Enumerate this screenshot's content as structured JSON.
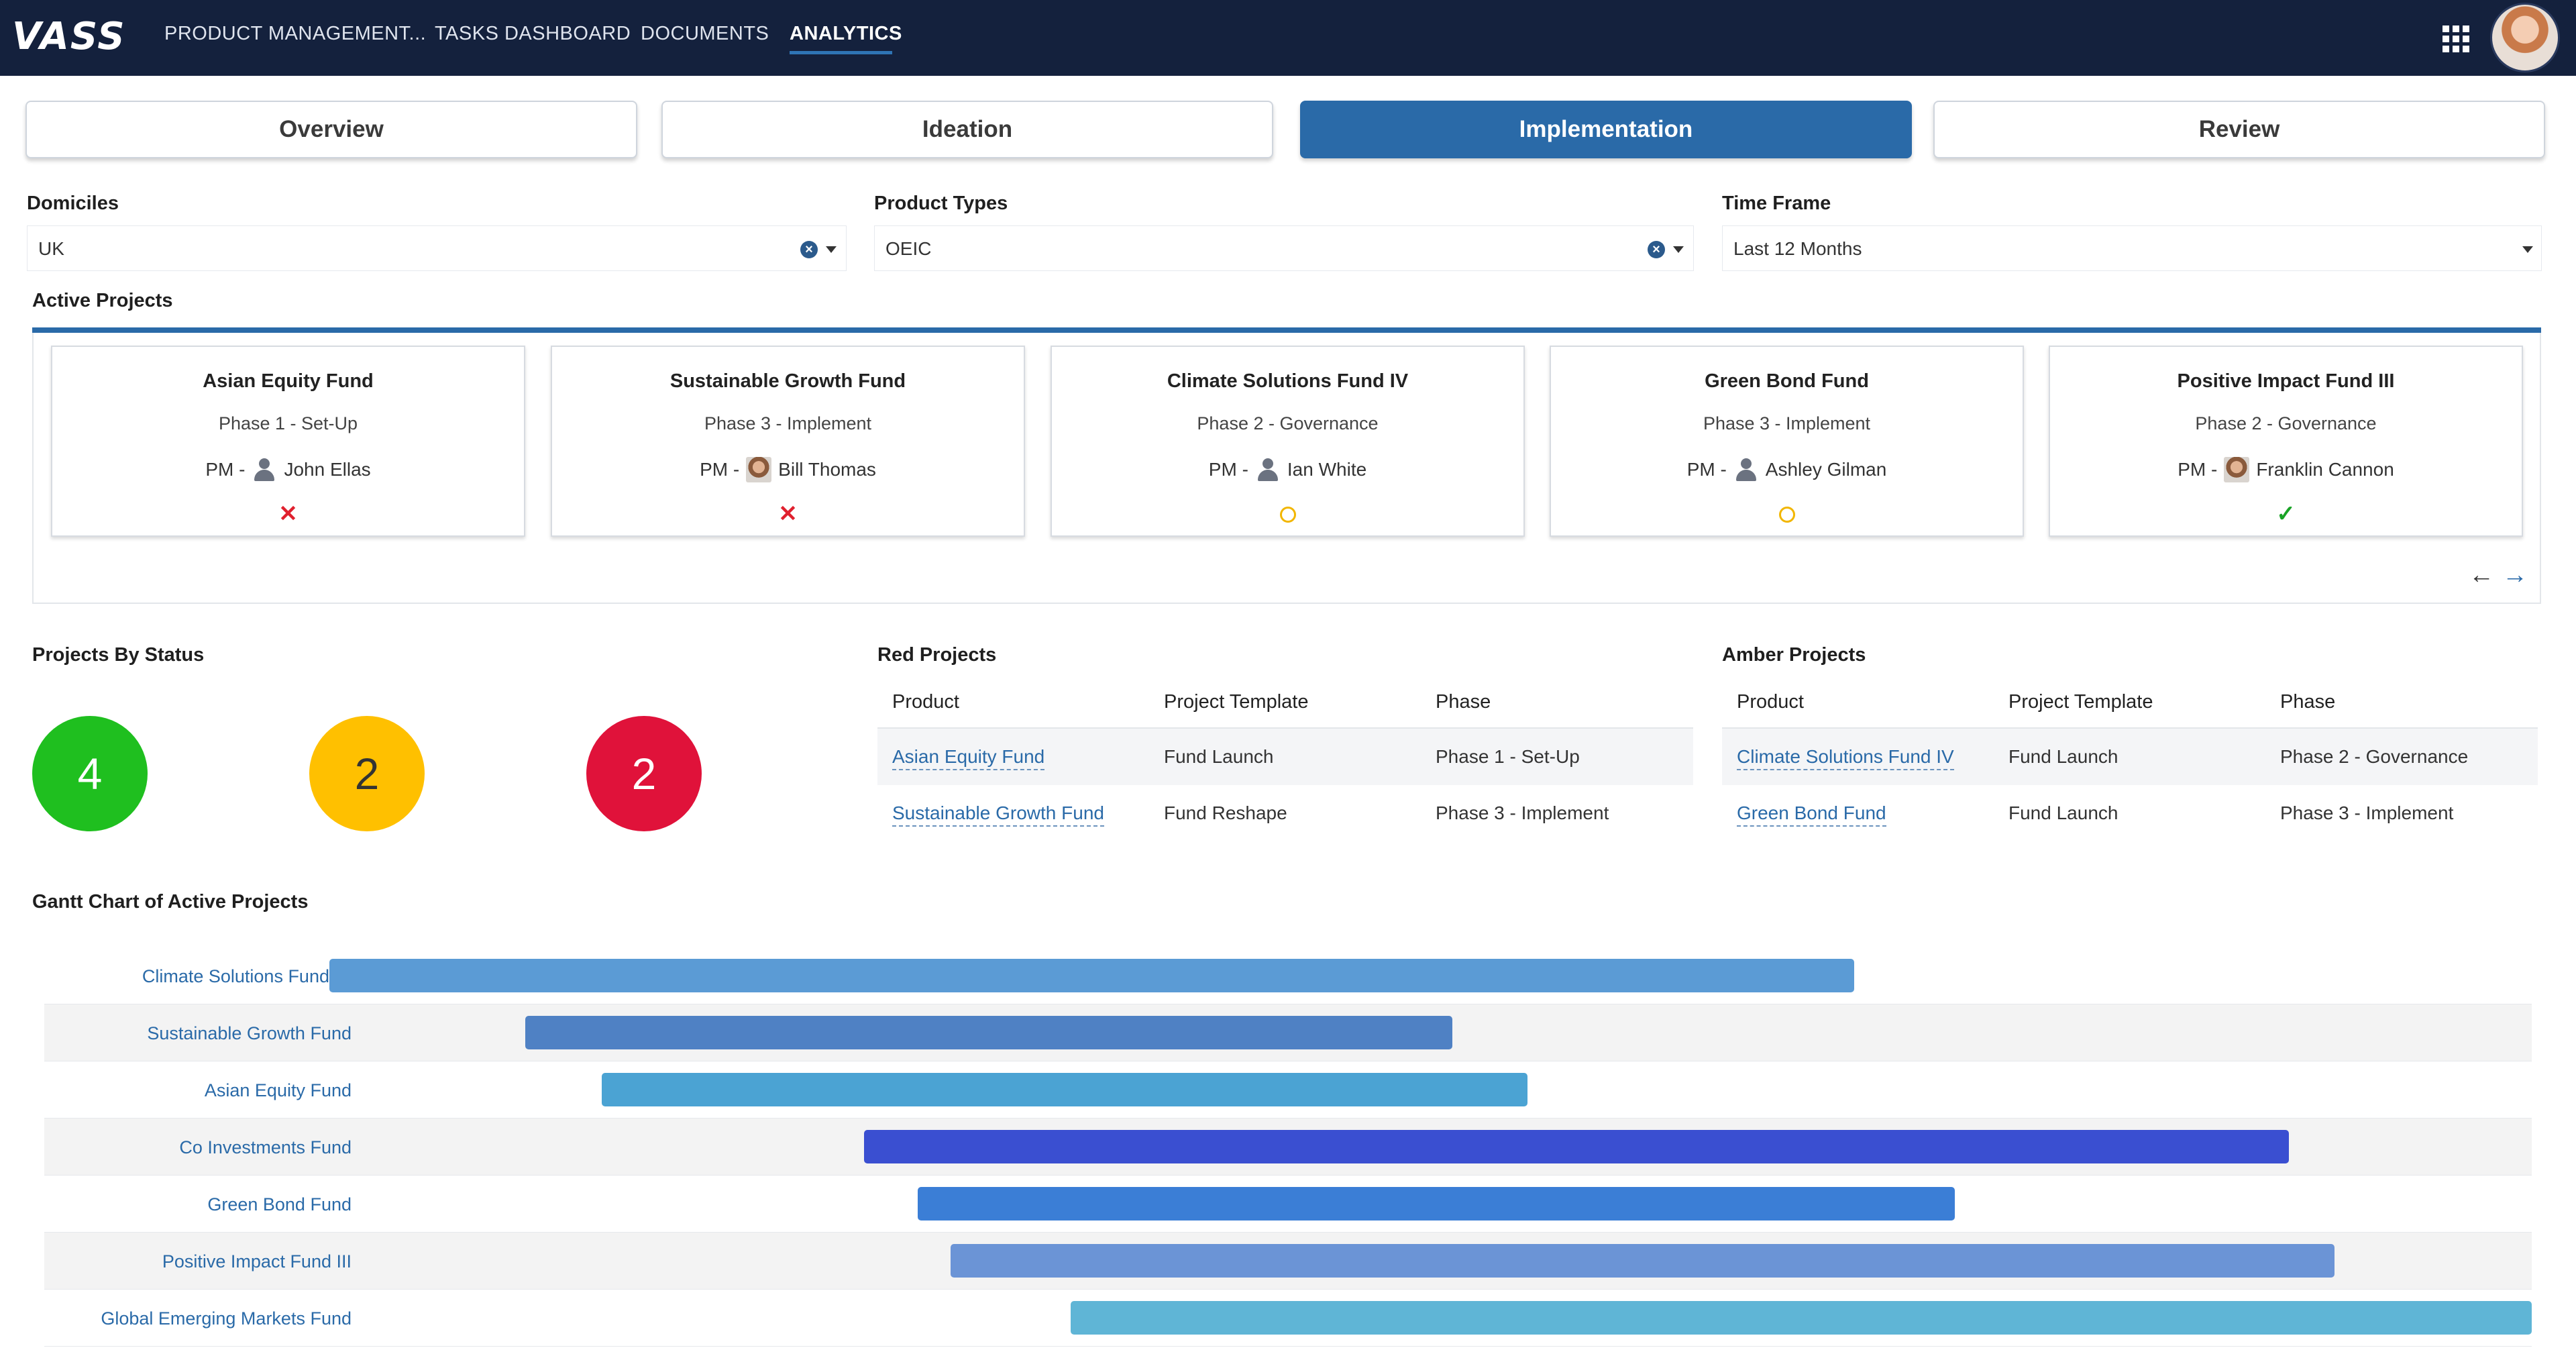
{
  "nav": {
    "logo": "VASS",
    "items": [
      "PRODUCT MANAGEMENT...",
      "TASKS DASHBOARD",
      "DOCUMENTS",
      "ANALYTICS"
    ],
    "active_item": "ANALYTICS",
    "apps_icon": "grid-icon",
    "avatar": "user-avatar"
  },
  "tabs": [
    "Overview",
    "Ideation",
    "Implementation",
    "Review"
  ],
  "active_tab": "Implementation",
  "filters": {
    "domiciles": {
      "label": "Domiciles",
      "value": "UK"
    },
    "product_types": {
      "label": "Product Types",
      "value": "OEIC"
    },
    "time_frame": {
      "label": "Time Frame",
      "value": "Last 12 Months"
    }
  },
  "active_projects": {
    "title": "Active Projects",
    "cards": [
      {
        "name": "Asian Equity Fund",
        "phase": "Phase 1 - Set-Up",
        "pm_prefix": "PM -",
        "pm": "John Ellas",
        "status": "red",
        "status_icon": "cross-icon"
      },
      {
        "name": "Sustainable Growth Fund",
        "phase": "Phase 3 - Implement",
        "pm_prefix": "PM -",
        "pm": "Bill Thomas",
        "status": "red",
        "status_icon": "cross-icon"
      },
      {
        "name": "Climate Solutions Fund IV",
        "phase": "Phase 2 - Governance",
        "pm_prefix": "PM -",
        "pm": "Ian White",
        "status": "amber",
        "status_icon": "circle-icon"
      },
      {
        "name": "Green Bond Fund",
        "phase": "Phase 3 - Implement",
        "pm_prefix": "PM -",
        "pm": "Ashley Gilman",
        "status": "amber",
        "status_icon": "circle-icon"
      },
      {
        "name": "Positive Impact Fund III",
        "phase": "Phase 2 - Governance",
        "pm_prefix": "PM -",
        "pm": "Franklin Cannon",
        "status": "green",
        "status_icon": "check-icon"
      }
    ]
  },
  "projects_by_status": {
    "title": "Projects By Status",
    "green": "4",
    "amber": "2",
    "red": "2",
    "colors": {
      "green": "#1fbf1f",
      "amber": "#ffc000",
      "red": "#e0123a"
    }
  },
  "red_projects": {
    "title": "Red Projects",
    "columns": [
      "Product",
      "Project Template",
      "Phase"
    ],
    "rows": [
      [
        "Asian Equity Fund",
        "Fund Launch",
        "Phase 1 - Set-Up"
      ],
      [
        "Sustainable Growth Fund",
        "Fund Reshape",
        "Phase 3 - Implement"
      ]
    ]
  },
  "amber_projects": {
    "title": "Amber Projects",
    "columns": [
      "Product",
      "Project Template",
      "Phase"
    ],
    "rows": [
      [
        "Climate Solutions Fund IV",
        "Fund Launch",
        "Phase 2 - Governance"
      ],
      [
        "Green Bond Fund",
        "Fund Launch",
        "Phase 3 - Implement"
      ]
    ]
  },
  "gantt": {
    "title": "Gantt Chart of Active Projects",
    "rows": [
      {
        "name": "Climate Solutions Fund IV",
        "color": "#5b9bd5"
      },
      {
        "name": "Sustainable Growth Fund",
        "color": "#4f81c4"
      },
      {
        "name": "Asian Equity Fund",
        "color": "#4ba3d3"
      },
      {
        "name": "Co Investments Fund",
        "color": "#3a4fd1"
      },
      {
        "name": "Green Bond Fund",
        "color": "#3b7ed6"
      },
      {
        "name": "Positive Impact Fund III",
        "color": "#6b94d6"
      },
      {
        "name": "Global Emerging Markets Fund",
        "color": "#5fb5d6"
      }
    ]
  }
}
